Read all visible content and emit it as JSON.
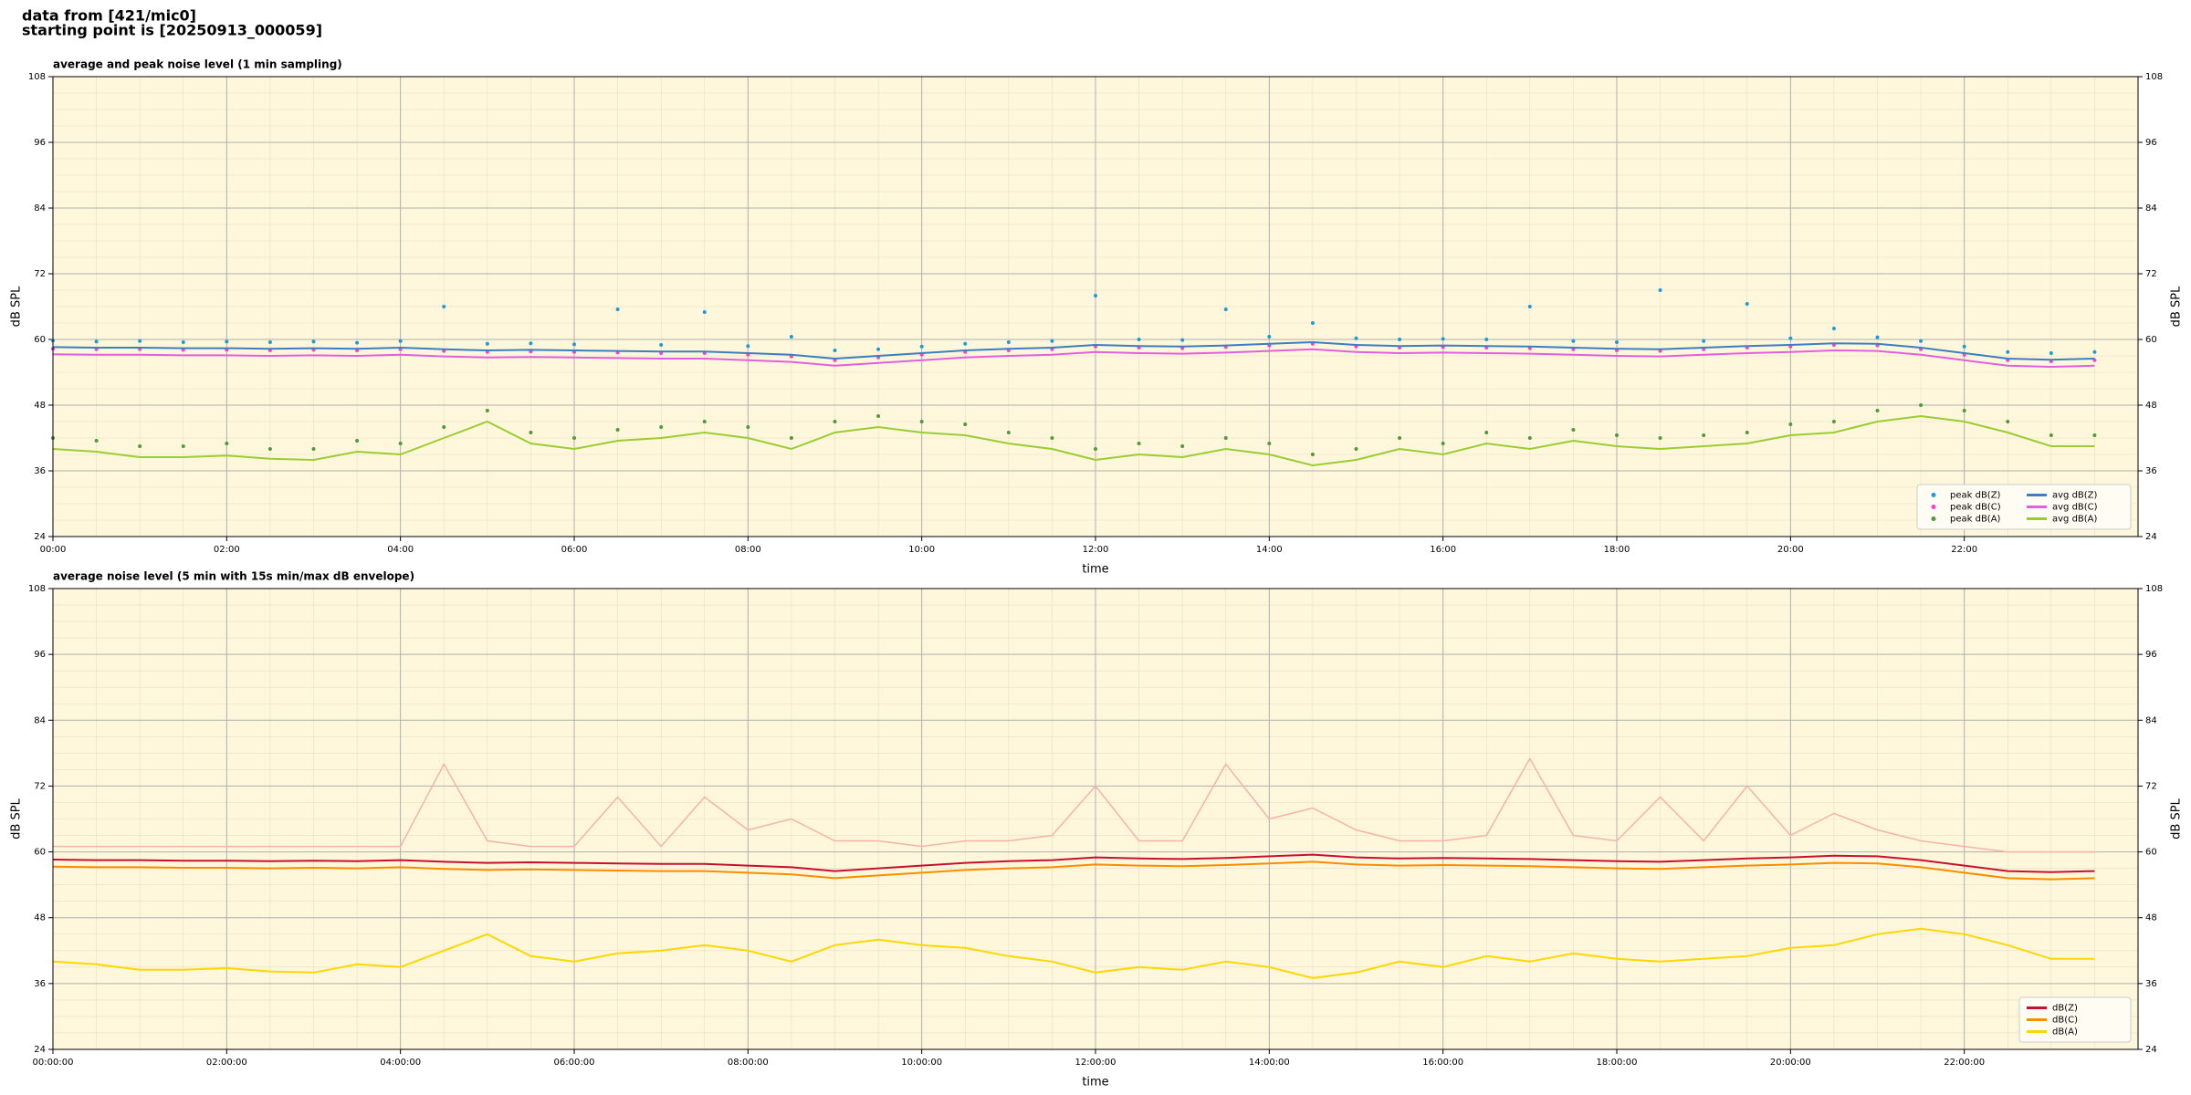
{
  "header": {
    "line1": "data from [421/mic0]",
    "line2": "starting point is [20250913_000059]"
  },
  "chart_data": [
    {
      "type": "line",
      "title": "average and peak noise level (1 min sampling)",
      "xlabel": "time",
      "ylabel": "dB SPL",
      "x": [
        0,
        0.5,
        1,
        1.5,
        2,
        2.5,
        3,
        3.5,
        4,
        4.5,
        5,
        5.5,
        6,
        6.5,
        7,
        7.5,
        8,
        8.5,
        9,
        9.5,
        10,
        10.5,
        11,
        11.5,
        12,
        12.5,
        13,
        13.5,
        14,
        14.5,
        15,
        15.5,
        16,
        16.5,
        17,
        17.5,
        18,
        18.5,
        19,
        19.5,
        20,
        20.5,
        21,
        21.5,
        22,
        22.5,
        23,
        23.5
      ],
      "xlim": [
        0,
        24
      ],
      "xticks": [
        {
          "value": 0,
          "label": "00:00"
        },
        {
          "value": 2,
          "label": "02:00"
        },
        {
          "value": 4,
          "label": "04:00"
        },
        {
          "value": 6,
          "label": "06:00"
        },
        {
          "value": 8,
          "label": "08:00"
        },
        {
          "value": 10,
          "label": "10:00"
        },
        {
          "value": 12,
          "label": "12:00"
        },
        {
          "value": 14,
          "label": "14:00"
        },
        {
          "value": 16,
          "label": "16:00"
        },
        {
          "value": 18,
          "label": "18:00"
        },
        {
          "value": 20,
          "label": "20:00"
        },
        {
          "value": 22,
          "label": "22:00"
        }
      ],
      "ylim": [
        24,
        108
      ],
      "yticks": [
        24,
        36,
        48,
        60,
        72,
        84,
        96,
        108
      ],
      "grid": true,
      "legend": "lower right",
      "legend_columns": 2,
      "series": [
        {
          "name": "peak dB(Z)",
          "type": "scatter",
          "color": "#1f9bd6",
          "values": [
            59.8,
            59.6,
            59.7,
            59.5,
            59.6,
            59.5,
            59.6,
            59.4,
            59.7,
            66.0,
            59.2,
            59.3,
            59.1,
            65.5,
            59.0,
            65.0,
            58.8,
            60.5,
            58.0,
            58.2,
            58.7,
            59.2,
            59.5,
            59.7,
            68.0,
            60.0,
            59.9,
            65.5,
            60.5,
            63.0,
            60.2,
            60.0,
            60.1,
            60.0,
            66.0,
            59.7,
            59.5,
            69.0,
            59.7,
            66.5,
            60.2,
            62.0,
            60.4,
            59.7,
            58.7,
            57.7,
            57.5,
            57.7
          ]
        },
        {
          "name": "peak dB(C)",
          "type": "scatter",
          "color": "#ff3fd0",
          "values": [
            58.3,
            58.2,
            58.2,
            58.1,
            58.1,
            58.0,
            58.1,
            58.0,
            58.2,
            57.9,
            57.7,
            57.8,
            57.7,
            57.6,
            57.5,
            57.5,
            57.2,
            56.9,
            56.2,
            56.7,
            57.2,
            57.7,
            58.0,
            58.2,
            58.7,
            58.5,
            58.4,
            58.6,
            58.9,
            59.2,
            58.7,
            58.5,
            58.6,
            58.5,
            58.4,
            58.2,
            58.0,
            57.9,
            58.2,
            58.5,
            58.7,
            59.0,
            58.9,
            58.2,
            57.2,
            56.2,
            56.0,
            56.2
          ]
        },
        {
          "name": "peak dB(A)",
          "type": "scatter",
          "color": "#4f9a3c",
          "values": [
            42,
            41.5,
            40.5,
            40.5,
            41,
            40,
            40,
            41.5,
            41,
            44,
            47,
            43,
            42,
            43.5,
            44,
            45,
            44,
            42,
            45,
            46,
            45,
            44.5,
            43,
            42,
            40,
            41,
            40.5,
            42,
            41,
            39,
            40,
            42,
            41,
            43,
            42,
            43.5,
            42.5,
            42,
            42.5,
            43,
            44.5,
            45,
            47,
            48,
            47,
            45,
            42.5,
            42.5
          ]
        },
        {
          "name": "avg dB(Z)",
          "type": "line",
          "color": "#3a7fbf",
          "values": [
            58.6,
            58.5,
            58.5,
            58.4,
            58.4,
            58.3,
            58.4,
            58.3,
            58.5,
            58.2,
            58.0,
            58.1,
            58.0,
            57.9,
            57.8,
            57.8,
            57.5,
            57.2,
            56.5,
            57.0,
            57.5,
            58.0,
            58.3,
            58.5,
            59.0,
            58.8,
            58.7,
            58.9,
            59.2,
            59.5,
            59.0,
            58.8,
            58.9,
            58.8,
            58.7,
            58.5,
            58.3,
            58.2,
            58.5,
            58.8,
            59.0,
            59.3,
            59.2,
            58.5,
            57.5,
            56.5,
            56.3,
            56.5
          ]
        },
        {
          "name": "avg dB(C)",
          "type": "line",
          "color": "#e060e0",
          "values": [
            57.3,
            57.2,
            57.2,
            57.1,
            57.1,
            57.0,
            57.1,
            57.0,
            57.2,
            56.9,
            56.7,
            56.8,
            56.7,
            56.6,
            56.5,
            56.5,
            56.2,
            55.9,
            55.2,
            55.7,
            56.2,
            56.7,
            57.0,
            57.2,
            57.7,
            57.5,
            57.4,
            57.6,
            57.9,
            58.2,
            57.7,
            57.5,
            57.6,
            57.5,
            57.4,
            57.2,
            57.0,
            56.9,
            57.2,
            57.5,
            57.7,
            58.0,
            57.9,
            57.2,
            56.2,
            55.2,
            55.0,
            55.2
          ]
        },
        {
          "name": "avg dB(A)",
          "type": "line",
          "color": "#9acd32",
          "values": [
            40,
            39.5,
            38.5,
            38.5,
            38.8,
            38.2,
            38.0,
            39.5,
            39.0,
            42,
            45,
            41,
            40,
            41.5,
            42,
            43,
            42,
            40,
            43,
            44,
            43,
            42.5,
            41,
            40,
            38,
            39,
            38.5,
            40,
            39,
            37,
            38,
            40,
            39,
            41,
            40,
            41.5,
            40.5,
            40,
            40.5,
            41,
            42.5,
            43,
            45,
            46,
            45,
            43,
            40.5,
            40.5
          ]
        }
      ]
    },
    {
      "type": "line",
      "title": "average noise level (5 min with 15s min/max dB envelope)",
      "xlabel": "time",
      "ylabel": "dB SPL",
      "x": [
        0,
        0.5,
        1,
        1.5,
        2,
        2.5,
        3,
        3.5,
        4,
        4.5,
        5,
        5.5,
        6,
        6.5,
        7,
        7.5,
        8,
        8.5,
        9,
        9.5,
        10,
        10.5,
        11,
        11.5,
        12,
        12.5,
        13,
        13.5,
        14,
        14.5,
        15,
        15.5,
        16,
        16.5,
        17,
        17.5,
        18,
        18.5,
        19,
        19.5,
        20,
        20.5,
        21,
        21.5,
        22,
        22.5,
        23,
        23.5
      ],
      "xlim": [
        0,
        24
      ],
      "xticks": [
        {
          "value": 0,
          "label": "00:00:00"
        },
        {
          "value": 2,
          "label": "02:00:00"
        },
        {
          "value": 4,
          "label": "04:00:00"
        },
        {
          "value": 6,
          "label": "06:00:00"
        },
        {
          "value": 8,
          "label": "08:00:00"
        },
        {
          "value": 10,
          "label": "10:00:00"
        },
        {
          "value": 12,
          "label": "12:00:00"
        },
        {
          "value": 14,
          "label": "14:00:00"
        },
        {
          "value": 16,
          "label": "16:00:00"
        },
        {
          "value": 18,
          "label": "18:00:00"
        },
        {
          "value": 20,
          "label": "20:00:00"
        },
        {
          "value": 22,
          "label": "22:00:00"
        }
      ],
      "ylim": [
        24,
        108
      ],
      "yticks": [
        24,
        36,
        48,
        60,
        72,
        84,
        96,
        108
      ],
      "grid": true,
      "legend": "lower right",
      "legend_columns": 1,
      "series": [
        {
          "name": "dB(Z)",
          "type": "line",
          "color": "#c8102e",
          "values": [
            58.6,
            58.5,
            58.5,
            58.4,
            58.4,
            58.3,
            58.4,
            58.3,
            58.5,
            58.2,
            58.0,
            58.1,
            58.0,
            57.9,
            57.8,
            57.8,
            57.5,
            57.2,
            56.5,
            57.0,
            57.5,
            58.0,
            58.3,
            58.5,
            59.0,
            58.8,
            58.7,
            58.9,
            59.2,
            59.5,
            59.0,
            58.8,
            58.9,
            58.8,
            58.7,
            58.5,
            58.3,
            58.2,
            58.5,
            58.8,
            59.0,
            59.3,
            59.2,
            58.5,
            57.5,
            56.5,
            56.3,
            56.5
          ],
          "max": [
            61,
            61,
            61,
            61,
            61,
            61,
            61,
            61,
            61,
            76,
            62,
            61,
            61,
            70,
            61,
            70,
            64,
            66,
            62,
            62,
            61,
            62,
            62,
            63,
            72,
            62,
            62,
            76,
            66,
            68,
            64,
            62,
            62,
            63,
            77,
            63,
            62,
            70,
            62,
            72,
            63,
            67,
            64,
            62,
            61,
            60,
            60,
            60
          ],
          "max_color": "#f6b3a8"
        },
        {
          "name": "dB(C)",
          "type": "line",
          "color": "#ff8c00",
          "values": [
            57.3,
            57.2,
            57.2,
            57.1,
            57.1,
            57.0,
            57.1,
            57.0,
            57.2,
            56.9,
            56.7,
            56.8,
            56.7,
            56.6,
            56.5,
            56.5,
            56.2,
            55.9,
            55.2,
            55.7,
            56.2,
            56.7,
            57.0,
            57.2,
            57.7,
            57.5,
            57.4,
            57.6,
            57.9,
            58.2,
            57.7,
            57.5,
            57.6,
            57.5,
            57.4,
            57.2,
            57.0,
            56.9,
            57.2,
            57.5,
            57.7,
            58.0,
            57.9,
            57.2,
            56.2,
            55.2,
            55.0,
            55.2
          ]
        },
        {
          "name": "dB(A)",
          "type": "line",
          "color": "#ffd700",
          "values": [
            40,
            39.5,
            38.5,
            38.5,
            38.8,
            38.2,
            38.0,
            39.5,
            39.0,
            42,
            45,
            41,
            40,
            41.5,
            42,
            43,
            42,
            40,
            43,
            44,
            43,
            42.5,
            41,
            40,
            38,
            39,
            38.5,
            40,
            39,
            37,
            38,
            40,
            39,
            41,
            40,
            41.5,
            40.5,
            40,
            40.5,
            41,
            42.5,
            43,
            45,
            46,
            45,
            43,
            40.5,
            40.5
          ]
        }
      ]
    }
  ]
}
